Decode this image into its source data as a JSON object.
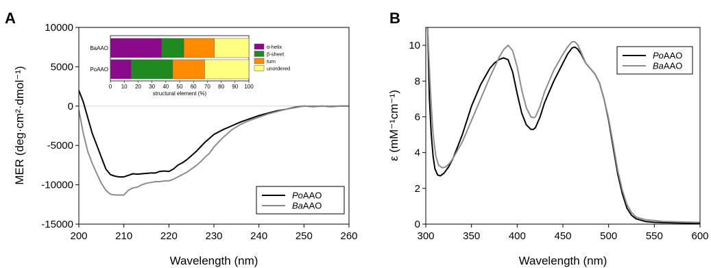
{
  "chart_data": [
    {
      "type": "line",
      "panel_label": "A",
      "xlabel": "Wavelength (nm)",
      "ylabel": "MER (deg·cm²·dmol⁻¹)",
      "xlim": [
        200,
        260
      ],
      "ylim": [
        -15000,
        10000
      ],
      "xticks": [
        200,
        210,
        220,
        230,
        240,
        250,
        260
      ],
      "yticks": [
        -15000,
        -10000,
        -5000,
        0,
        5000,
        10000
      ],
      "legend_position": "bottom-right",
      "series": [
        {
          "name": "PoAAO",
          "color": "#000000",
          "x": [
            200,
            201,
            202,
            203,
            204,
            205,
            206,
            207,
            208,
            209,
            210,
            211,
            212,
            213,
            214,
            215,
            216,
            217,
            218,
            219,
            220,
            221,
            222,
            223,
            224,
            225,
            226,
            227,
            228,
            229,
            230,
            232,
            234,
            236,
            238,
            240,
            242,
            244,
            246,
            248,
            250,
            252,
            254,
            256,
            258,
            260
          ],
          "y": [
            2000,
            500,
            -1500,
            -3500,
            -5000,
            -6500,
            -8000,
            -8700,
            -8900,
            -9000,
            -9000,
            -8800,
            -8600,
            -8650,
            -8600,
            -8550,
            -8500,
            -8500,
            -8300,
            -8250,
            -8300,
            -8000,
            -7500,
            -7200,
            -6800,
            -6300,
            -5800,
            -5200,
            -4600,
            -4100,
            -3600,
            -3000,
            -2500,
            -2000,
            -1600,
            -1200,
            -900,
            -600,
            -400,
            -150,
            0,
            -50,
            0,
            -50,
            0,
            0
          ]
        },
        {
          "name": "BaAAO",
          "color": "#8c8c8c",
          "x": [
            200,
            201,
            202,
            203,
            204,
            205,
            206,
            207,
            208,
            209,
            210,
            211,
            212,
            213,
            214,
            215,
            216,
            217,
            218,
            219,
            220,
            221,
            222,
            223,
            224,
            225,
            226,
            227,
            228,
            229,
            230,
            232,
            234,
            236,
            238,
            240,
            242,
            244,
            246,
            248,
            250,
            252,
            254,
            256,
            258,
            260
          ],
          "y": [
            -500,
            -3500,
            -5800,
            -7300,
            -8600,
            -9800,
            -10700,
            -11200,
            -11300,
            -11300,
            -11300,
            -10700,
            -10400,
            -10300,
            -10000,
            -9800,
            -9700,
            -9600,
            -9600,
            -9500,
            -9500,
            -9300,
            -9000,
            -8700,
            -8400,
            -8000,
            -7600,
            -7100,
            -6500,
            -6000,
            -5200,
            -4000,
            -3000,
            -2300,
            -1800,
            -1400,
            -1000,
            -700,
            -400,
            -200,
            0,
            -100,
            0,
            -100,
            0,
            0
          ]
        }
      ],
      "inset": {
        "type": "stacked_bar_horizontal",
        "xlabel": "structural element (%)",
        "xlim": [
          0,
          100
        ],
        "xticks": [
          0,
          10,
          20,
          30,
          40,
          50,
          60,
          70,
          80,
          90,
          100
        ],
        "categories": [
          "BaAAO",
          "PoAAO"
        ],
        "segments": [
          {
            "name": "α-helix",
            "color": "#8b0a8b",
            "values": [
              37,
              15
            ]
          },
          {
            "name": "β-sheet",
            "color": "#1f8a1f",
            "values": [
              16,
              30
            ]
          },
          {
            "name": "turn",
            "color": "#ff8c00",
            "values": [
              22,
              23
            ]
          },
          {
            "name": "unordered",
            "color": "#ffff80",
            "values": [
              25,
              32
            ]
          }
        ]
      }
    },
    {
      "type": "line",
      "panel_label": "B",
      "xlabel": "Wavelength (nm)",
      "ylabel": "ε (mM⁻¹cm⁻¹)",
      "xlim": [
        300,
        600
      ],
      "ylim": [
        0,
        11
      ],
      "xticks": [
        300,
        350,
        400,
        450,
        500,
        550,
        600
      ],
      "yticks": [
        0,
        2,
        4,
        6,
        8,
        10
      ],
      "legend_position": "top-right",
      "series": [
        {
          "name": "PoAAO",
          "color": "#000000",
          "x": [
            302,
            304,
            306,
            308,
            310,
            313,
            316,
            320,
            325,
            330,
            340,
            350,
            360,
            370,
            375,
            380,
            385,
            390,
            395,
            400,
            405,
            410,
            415,
            418,
            420,
            425,
            430,
            440,
            450,
            455,
            460,
            463,
            466,
            470,
            475,
            480,
            485,
            490,
            495,
            500,
            505,
            510,
            515,
            520,
            525,
            530,
            540,
            550,
            560,
            580,
            600
          ],
          "y": [
            11,
            7.0,
            5.0,
            3.8,
            3.1,
            2.75,
            2.7,
            2.85,
            3.2,
            3.7,
            5.0,
            6.6,
            7.8,
            8.7,
            9.0,
            9.2,
            9.3,
            9.2,
            8.5,
            7.3,
            6.2,
            5.55,
            5.3,
            5.3,
            5.4,
            6.0,
            6.8,
            8.0,
            9.0,
            9.5,
            9.85,
            9.9,
            9.8,
            9.5,
            9.0,
            8.7,
            8.4,
            7.9,
            7.0,
            5.8,
            4.3,
            2.8,
            1.7,
            0.9,
            0.5,
            0.3,
            0.15,
            0.1,
            0.08,
            0.06,
            0.05
          ]
        },
        {
          "name": "BaAAO",
          "color": "#8c8c8c",
          "x": [
            302,
            305,
            308,
            311,
            314,
            318,
            322,
            326,
            330,
            340,
            350,
            360,
            370,
            380,
            385,
            390,
            395,
            400,
            405,
            410,
            415,
            418,
            420,
            425,
            430,
            440,
            450,
            455,
            460,
            463,
            466,
            470,
            475,
            480,
            485,
            490,
            495,
            500,
            505,
            510,
            515,
            520,
            525,
            530,
            540,
            550,
            560,
            580,
            600
          ],
          "y": [
            11,
            7.5,
            5.0,
            3.8,
            3.3,
            3.15,
            3.2,
            3.4,
            3.7,
            4.6,
            5.8,
            7.0,
            8.2,
            9.3,
            9.75,
            10.0,
            9.7,
            8.8,
            7.5,
            6.5,
            6.0,
            5.95,
            6.0,
            6.6,
            7.4,
            8.6,
            9.5,
            9.9,
            10.2,
            10.2,
            10.05,
            9.6,
            9.0,
            8.7,
            8.4,
            7.9,
            7.0,
            5.9,
            4.5,
            3.0,
            1.9,
            1.1,
            0.65,
            0.4,
            0.25,
            0.2,
            0.15,
            0.12,
            0.1
          ]
        }
      ]
    }
  ]
}
